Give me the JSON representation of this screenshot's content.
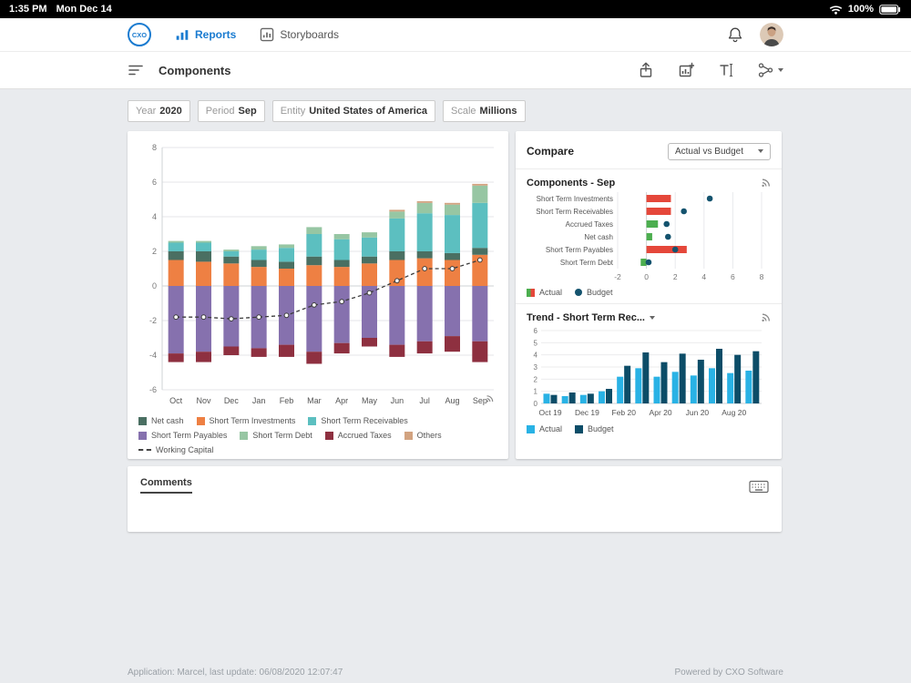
{
  "status_bar": {
    "time": "1:35 PM",
    "date": "Mon Dec 14",
    "battery_pct": "100%"
  },
  "header": {
    "logo_text": "CXO",
    "tabs": [
      {
        "label": "Reports",
        "active": true
      },
      {
        "label": "Storyboards",
        "active": false
      }
    ]
  },
  "toolbar": {
    "title": "Components"
  },
  "filters": [
    {
      "label": "Year",
      "value": "2020"
    },
    {
      "label": "Period",
      "value": "Sep"
    },
    {
      "label": "Entity",
      "value": "United States of America"
    },
    {
      "label": "Scale",
      "value": "Millions"
    }
  ],
  "compare": {
    "title": "Compare",
    "dropdown": "Actual vs Budget"
  },
  "comments": {
    "tab": "Comments"
  },
  "footer": {
    "left": "Application: Marcel, last update: 06/08/2020 12:07:47",
    "right": "Powered by CXO Software"
  },
  "chart_data": [
    {
      "type": "bar",
      "title": "Components",
      "stacked": true,
      "categories": [
        "Oct",
        "Nov",
        "Dec",
        "Jan",
        "Feb",
        "Mar",
        "Apr",
        "May",
        "Jun",
        "Jul",
        "Aug",
        "Sep"
      ],
      "ylim": [
        -6,
        8
      ],
      "yticks": [
        8,
        6,
        4,
        2,
        0,
        -2,
        -4,
        -6
      ],
      "series": [
        {
          "name": "Short Term Investments",
          "color": "#ee8043",
          "values": [
            1.5,
            1.4,
            1.3,
            1.1,
            1.0,
            1.2,
            1.1,
            1.3,
            1.5,
            1.6,
            1.5,
            1.8
          ]
        },
        {
          "name": "Net cash",
          "color": "#4a6f62",
          "values": [
            0.5,
            0.6,
            0.4,
            0.4,
            0.4,
            0.5,
            0.4,
            0.4,
            0.5,
            0.4,
            0.4,
            0.4
          ]
        },
        {
          "name": "Short Term Receivables",
          "color": "#5cbfc0",
          "values": [
            0.5,
            0.5,
            0.3,
            0.6,
            0.8,
            1.3,
            1.2,
            1.1,
            1.9,
            2.2,
            2.2,
            2.6
          ]
        },
        {
          "name": "Short Term Debt",
          "color": "#97c6a3",
          "values": [
            0.1,
            0.1,
            0.1,
            0.2,
            0.2,
            0.4,
            0.3,
            0.3,
            0.4,
            0.6,
            0.6,
            1.0
          ]
        },
        {
          "name": "Others",
          "color": "#d2a380",
          "values": [
            0,
            0,
            0,
            0,
            0,
            0,
            0,
            0,
            0.1,
            0.1,
            0.1,
            0.1
          ]
        },
        {
          "name": "Short Term Payables",
          "color": "#8671ae",
          "values": [
            -3.9,
            -3.8,
            -3.5,
            -3.6,
            -3.4,
            -3.8,
            -3.3,
            -3.0,
            -3.4,
            -3.2,
            -2.9,
            -3.2
          ]
        },
        {
          "name": "Accrued Taxes",
          "color": "#8e3040",
          "values": [
            -0.5,
            -0.6,
            -0.5,
            -0.5,
            -0.7,
            -0.7,
            -0.6,
            -0.5,
            -0.7,
            -0.7,
            -0.9,
            -1.2
          ]
        }
      ],
      "line": {
        "name": "Working Capital",
        "color": "#3c3c3c",
        "values": [
          -1.8,
          -1.8,
          -1.9,
          -1.8,
          -1.7,
          -1.1,
          -0.9,
          -0.4,
          0.3,
          1.0,
          1.0,
          1.5
        ]
      },
      "legend": [
        {
          "label": "Net cash",
          "color": "#4a6f62",
          "shape": "square"
        },
        {
          "label": "Short Term Investments",
          "color": "#ee8043",
          "shape": "square"
        },
        {
          "label": "Short Term Receivables",
          "color": "#5cbfc0",
          "shape": "square"
        },
        {
          "label": "Short Term Payables",
          "color": "#8671ae",
          "shape": "square"
        },
        {
          "label": "Short Term Debt",
          "color": "#97c6a3",
          "shape": "square"
        },
        {
          "label": "Accrued Taxes",
          "color": "#8e3040",
          "shape": "square"
        },
        {
          "label": "Others",
          "color": "#d2a380",
          "shape": "square"
        },
        {
          "label": "Working Capital",
          "color": "#444444",
          "shape": "dashes"
        }
      ]
    },
    {
      "type": "bar",
      "orientation": "horizontal",
      "title": "Components - Sep",
      "xlim": [
        -2,
        8
      ],
      "xticks": [
        -2,
        0,
        2,
        4,
        6,
        8
      ],
      "rows": [
        {
          "label": "Short Term Investments",
          "actual": 1.7,
          "color": "#e5473a",
          "budget": 4.4
        },
        {
          "label": "Short Term Receivables",
          "actual": 1.7,
          "color": "#e5473a",
          "budget": 2.6
        },
        {
          "label": "Accrued Taxes",
          "actual": 0.8,
          "color": "#4cae4f",
          "budget": 1.4
        },
        {
          "label": "Net cash",
          "actual": 0.4,
          "color": "#4cae4f",
          "budget": 1.5
        },
        {
          "label": "Short Term Payables",
          "actual": 2.8,
          "color": "#e5473a",
          "budget": 2.0
        },
        {
          "label": "Short Term Debt",
          "actual": -0.4,
          "color": "#4cae4f",
          "budget": 0.15
        }
      ],
      "budget_color": "#14536e",
      "legend": [
        {
          "label": "Actual",
          "shape": "split",
          "color": "#4cae4f",
          "color2": "#e5473a"
        },
        {
          "label": "Budget",
          "shape": "dot",
          "color": "#14536e"
        }
      ]
    },
    {
      "type": "bar",
      "title": "Trend - Short Term Rec...",
      "ylim": [
        0,
        6
      ],
      "yticks": [
        0,
        1,
        2,
        3,
        4,
        5,
        6
      ],
      "categories": [
        "Oct 19",
        "Nov 19",
        "Dec 19",
        "Jan 20",
        "Feb 20",
        "Mar 20",
        "Apr 20",
        "May 20",
        "Jun 20",
        "Jul 20",
        "Aug 20",
        "Sep 20"
      ],
      "x_tick_labels": [
        "Oct 19",
        "Dec 19",
        "Feb 20",
        "Apr 20",
        "Jun 20",
        "Aug 20"
      ],
      "series": [
        {
          "name": "Actual",
          "color": "#29b2e5",
          "values": [
            0.8,
            0.6,
            0.7,
            1.0,
            2.2,
            2.9,
            2.2,
            2.6,
            2.3,
            2.9,
            2.5,
            2.7
          ]
        },
        {
          "name": "Budget",
          "color": "#0c4d68",
          "values": [
            0.7,
            0.9,
            0.8,
            1.2,
            3.1,
            4.2,
            3.4,
            4.1,
            3.6,
            4.5,
            4.0,
            4.3
          ]
        }
      ],
      "legend": [
        {
          "label": "Actual",
          "color": "#29b2e5",
          "shape": "square"
        },
        {
          "label": "Budget",
          "color": "#0c4d68",
          "shape": "square"
        }
      ]
    }
  ]
}
